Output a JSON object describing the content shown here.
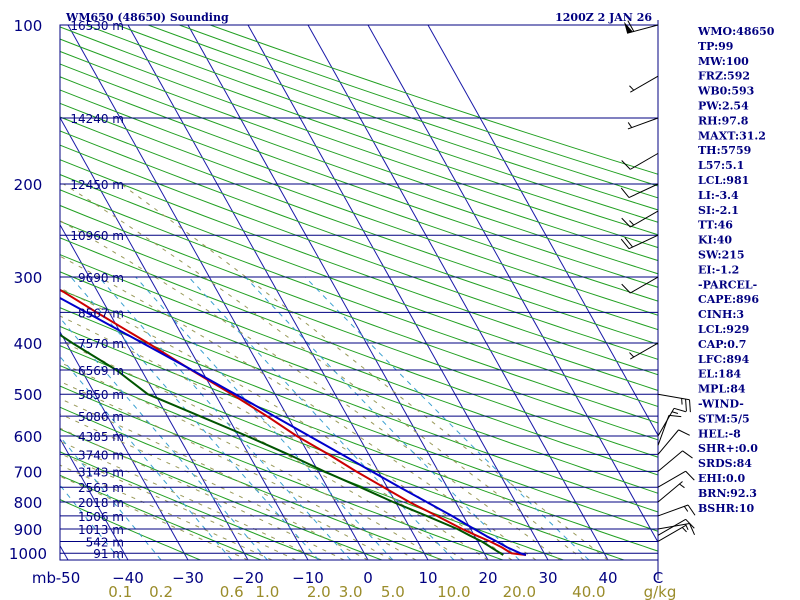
{
  "header": {
    "station": "WM650 (48650) Sounding",
    "time": "1200Z  2 JAN 26"
  },
  "indices": [
    "WMO:48650",
    "TP:99",
    "MW:100",
    "FRZ:592",
    "WB0:593",
    "PW:2.54",
    "RH:97.8",
    "MAXT:31.2",
    "TH:5759",
    "L57:5.1",
    "LCL:981",
    "LI:-3.4",
    "SI:-2.1",
    "TT:46",
    "KI:40",
    "SW:215",
    "EI:-1.2",
    "-PARCEL-",
    "CAPE:896",
    "CINH:3",
    "LCL:929",
    "CAP:0.7",
    "LFC:894",
    "EL:184",
    "MPL:84",
    "-WIND-",
    "STM:5/5",
    "HEL:-8",
    "SHR+:0.0",
    "SRDS:84",
    "EHI:0.0",
    "BRN:92.3",
    "BSHR:10"
  ],
  "colors": {
    "isobar": "#000080",
    "isotherm": "#1a1aa8",
    "dry_adiabat": "#22a022",
    "moist_adiabat": "#9a9a5a",
    "mixing_ratio": "#3aa0d0",
    "temperature": "#cc0000",
    "dewpoint": "#005500",
    "parcel": "#0000cc"
  },
  "chart_data": {
    "type": "skew-t",
    "pressure_levels": [
      100,
      200,
      300,
      400,
      500,
      600,
      700,
      800,
      900,
      1000
    ],
    "pressure_labels": [
      "100",
      "200",
      "300",
      "400",
      "500",
      "600",
      "700",
      "800",
      "900",
      "1000"
    ],
    "height_ticks": [
      {
        "p": 100,
        "label": "16530 m"
      },
      {
        "p": 150,
        "label": "14240 m"
      },
      {
        "p": 200,
        "label": "12450 m"
      },
      {
        "p": 250,
        "label": "10960 m"
      },
      {
        "p": 300,
        "label": "9690 m"
      },
      {
        "p": 350,
        "label": "8567 m"
      },
      {
        "p": 400,
        "label": "7570 m"
      },
      {
        "p": 450,
        "label": "6569 m"
      },
      {
        "p": 500,
        "label": "5850 m"
      },
      {
        "p": 550,
        "label": "5086 m"
      },
      {
        "p": 600,
        "label": "4385 m"
      },
      {
        "p": 650,
        "label": "3740 m"
      },
      {
        "p": 700,
        "label": "3143 m"
      },
      {
        "p": 750,
        "label": "2563 m"
      },
      {
        "p": 800,
        "label": "2018 m"
      },
      {
        "p": 850,
        "label": "1506 m"
      },
      {
        "p": 900,
        "label": "1013 m"
      },
      {
        "p": 950,
        "label": "542 m"
      },
      {
        "p": 1000,
        "label": "91 m"
      }
    ],
    "x_unit_label": "mb",
    "temperature_ticks": [
      -50,
      -40,
      -30,
      -20,
      -10,
      0,
      10,
      20,
      30,
      40
    ],
    "temperature_tick_labels": [
      "-50",
      "−40",
      "−30",
      "−20",
      "−10",
      "0",
      "10",
      "20",
      "30",
      "40"
    ],
    "temperature_unit": "C",
    "mixing_ratio_values": [
      0.1,
      0.2,
      0.6,
      1.0,
      2.0,
      3.0,
      5.0,
      10.0,
      20.0,
      40.0
    ],
    "mixing_ratio_labels": [
      "0.1",
      "0.2",
      "0.6",
      "1.0",
      "2.0",
      "3.0",
      "5.0",
      "10.0",
      "20.0",
      "40.0"
    ],
    "mixing_ratio_unit": "g/kg",
    "temperature_profile": [
      [
        1008,
        26.8
      ],
      [
        1000,
        24.5
      ],
      [
        975,
        23.5
      ],
      [
        950,
        22.1
      ],
      [
        925,
        20.3
      ],
      [
        900,
        18.6
      ],
      [
        850,
        15.6
      ],
      [
        800,
        12.3
      ],
      [
        750,
        9.4
      ],
      [
        700,
        6.3
      ],
      [
        650,
        3.3
      ],
      [
        600,
        -0.3
      ],
      [
        550,
        -3.4
      ],
      [
        500,
        -7.2
      ],
      [
        450,
        -11.7
      ],
      [
        400,
        -16.4
      ],
      [
        350,
        -22.1
      ],
      [
        320,
        -25.7
      ],
      [
        300,
        -29.1
      ],
      [
        250,
        -38.2
      ],
      [
        200,
        -49.0
      ],
      [
        150,
        -64.6
      ],
      [
        125,
        -74.0
      ],
      [
        100,
        -79.6
      ]
    ],
    "dewpoint_profile": [
      [
        1008,
        23.0
      ],
      [
        1000,
        22.7
      ],
      [
        975,
        21.7
      ],
      [
        950,
        20.7
      ],
      [
        925,
        19.2
      ],
      [
        900,
        17.8
      ],
      [
        850,
        13.9
      ],
      [
        800,
        9.6
      ],
      [
        750,
        5.5
      ],
      [
        700,
        1.0
      ],
      [
        650,
        -3.4
      ],
      [
        600,
        -8.6
      ],
      [
        550,
        -14.6
      ],
      [
        500,
        -21.2
      ],
      [
        450,
        -24.2
      ],
      [
        400,
        -29.0
      ],
      [
        350,
        -33.8
      ],
      [
        320,
        -37.2
      ],
      [
        300,
        -40.5
      ],
      [
        280,
        -44.5
      ],
      [
        250,
        -47.5
      ],
      [
        200,
        -58.0
      ],
      [
        150,
        -74.5
      ],
      [
        125,
        -83.5
      ],
      [
        100,
        -89.0
      ]
    ],
    "parcel_profile": [
      [
        1008,
        26.8
      ],
      [
        1000,
        26.0
      ],
      [
        975,
        24.4
      ],
      [
        950,
        23.2
      ],
      [
        929,
        22.0
      ],
      [
        900,
        20.6
      ],
      [
        850,
        18.1
      ],
      [
        800,
        15.2
      ],
      [
        750,
        12.1
      ],
      [
        700,
        8.9
      ],
      [
        650,
        5.5
      ],
      [
        600,
        1.8
      ],
      [
        550,
        -2.2
      ],
      [
        500,
        -6.6
      ],
      [
        450,
        -11.6
      ],
      [
        400,
        -17.3
      ],
      [
        350,
        -23.8
      ],
      [
        300,
        -31.3
      ],
      [
        250,
        -40.0
      ],
      [
        200,
        -50.6
      ],
      [
        184,
        -54.5
      ],
      [
        150,
        -64.3
      ],
      [
        100,
        -82.0
      ]
    ],
    "wind_barbs": [
      {
        "p": 100,
        "dir": 255,
        "kt": 60
      },
      {
        "p": 125,
        "dir": 240,
        "kt": 5
      },
      {
        "p": 150,
        "dir": 250,
        "kt": 5
      },
      {
        "p": 175,
        "dir": 240,
        "kt": 10
      },
      {
        "p": 200,
        "dir": 245,
        "kt": 10
      },
      {
        "p": 225,
        "dir": 240,
        "kt": 15
      },
      {
        "p": 250,
        "dir": 245,
        "kt": 20
      },
      {
        "p": 300,
        "dir": 240,
        "kt": 10
      },
      {
        "p": 400,
        "dir": 240,
        "kt": 5
      },
      {
        "p": 500,
        "dir": 100,
        "kt": 25
      },
      {
        "p": 600,
        "dir": 30,
        "kt": 15
      },
      {
        "p": 625,
        "dir": 20,
        "kt": 10
      },
      {
        "p": 650,
        "dir": 40,
        "kt": 10
      },
      {
        "p": 700,
        "dir": 50,
        "kt": 10
      },
      {
        "p": 750,
        "dir": 60,
        "kt": 10
      },
      {
        "p": 800,
        "dir": 50,
        "kt": 5
      },
      {
        "p": 850,
        "dir": 70,
        "kt": 15
      },
      {
        "p": 900,
        "dir": 80,
        "kt": 15
      },
      {
        "p": 925,
        "dir": 60,
        "kt": 10
      },
      {
        "p": 950,
        "dir": 60,
        "kt": 5
      }
    ]
  }
}
